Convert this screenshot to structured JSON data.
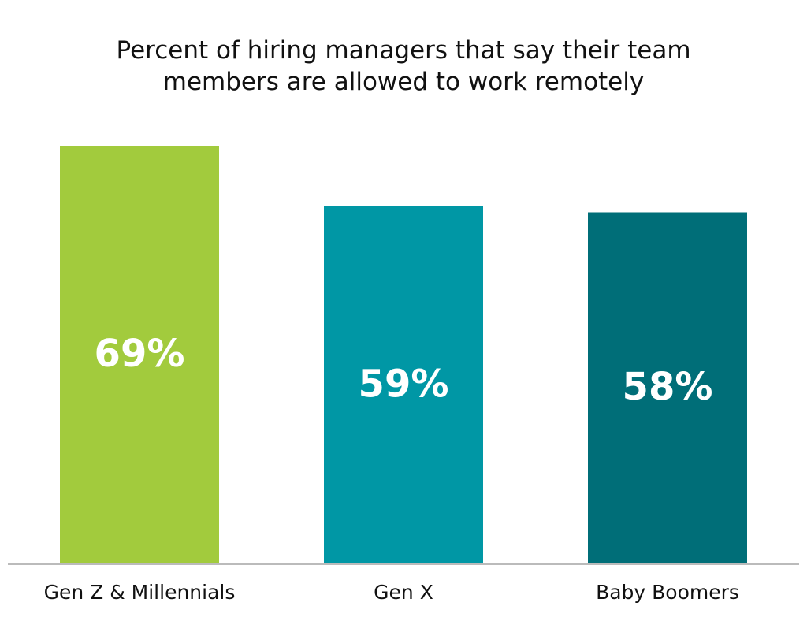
{
  "chart_data": {
    "type": "bar",
    "title": "Percent of hiring managers that say their team members are allowed to work remotely",
    "categories": [
      "Gen Z & Millennials",
      "Gen X",
      "Baby Boomers"
    ],
    "values": [
      69,
      59,
      58
    ],
    "value_labels": [
      "69%",
      "59%",
      "58%"
    ],
    "colors": [
      "#a2cb3d",
      "#0097a5",
      "#006e78"
    ]
  }
}
